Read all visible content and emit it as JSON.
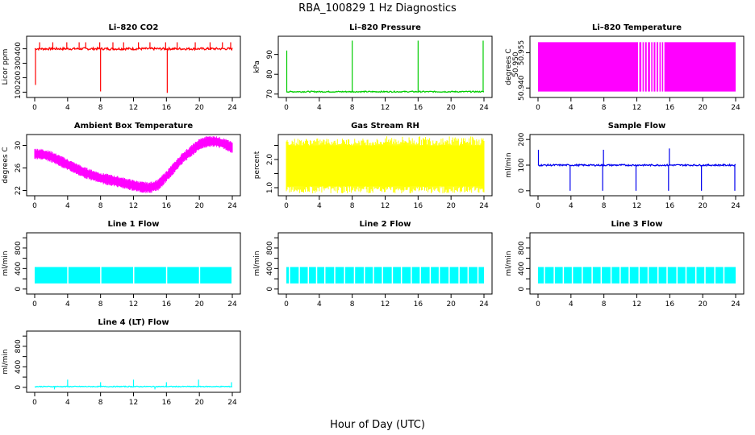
{
  "figure": {
    "title": "RBA_100829  1 Hz Diagnostics",
    "xlabel": "Hour of Day (UTC)"
  },
  "chart_data": [
    {
      "type": "line",
      "id": "co2",
      "title": "Li–820 CO2",
      "ylabel": "Licor ppm",
      "color": "#ff0000",
      "xlim": [
        0,
        24
      ],
      "ylim": [
        80,
        470
      ],
      "xticks": [
        0,
        4,
        8,
        12,
        16,
        20,
        24
      ],
      "yticks": [
        100,
        200,
        300,
        400
      ],
      "baseline": 400,
      "noise": 8,
      "spikes_up": [
        0.6,
        2.2,
        3.9,
        5.4,
        6.2,
        7.9,
        9.5,
        10.8,
        12.6,
        14.0,
        15.9,
        17.3,
        19.5,
        21.3,
        22.8,
        23.8
      ],
      "spike_up_value": 445,
      "spikes_down": [
        {
          "x": 8.0,
          "y": 105
        },
        {
          "x": 16.1,
          "y": 95
        },
        {
          "x": 0.1,
          "y": 150
        }
      ]
    },
    {
      "type": "line",
      "id": "pressure",
      "title": "Li–820 Pressure",
      "ylabel": "kPa",
      "color": "#00cc00",
      "xlim": [
        0,
        24
      ],
      "ylim": [
        69.5,
        98
      ],
      "xticks": [
        0,
        4,
        8,
        12,
        16,
        20,
        24
      ],
      "yticks": [
        70,
        80,
        90
      ],
      "baseline": 71.2,
      "noise": 0.3,
      "spikes": [
        {
          "x": 0.05,
          "y": 92
        },
        {
          "x": 8.0,
          "y": 97
        },
        {
          "x": 16.0,
          "y": 97
        },
        {
          "x": 23.9,
          "y": 97
        }
      ]
    },
    {
      "type": "band",
      "id": "licor-temp",
      "title": "Li–820 Temperature",
      "ylabel": "degrees C",
      "color": "#ff00ff",
      "xlim": [
        0,
        24
      ],
      "ylim": [
        50.937,
        50.961
      ],
      "xticks": [
        0,
        4,
        8,
        12,
        16,
        20,
        24
      ],
      "yticks": [
        50.94,
        50.955
      ],
      "ytick_labels": [
        "50.940",
        "50.955"
      ],
      "extra_ytick_labels": [
        "50.950"
      ],
      "band": [
        50.9385,
        50.9595
      ],
      "gaps": [
        12.15,
        12.55,
        12.85,
        13.2,
        13.6,
        13.9,
        14.25,
        14.6,
        14.9,
        15.2
      ]
    },
    {
      "type": "line",
      "id": "ambient-temp",
      "title": "Ambient Box Temperature",
      "ylabel": "degrees C",
      "color": "#ff00ff",
      "xlim": [
        0,
        24
      ],
      "ylim": [
        21.5,
        31.5
      ],
      "xticks": [
        0,
        4,
        8,
        12,
        16,
        20,
        24
      ],
      "yticks": [
        22,
        26,
        30
      ],
      "curve_x": [
        0,
        1,
        2,
        4,
        6,
        8,
        10,
        12,
        13,
        14,
        15,
        16,
        18,
        20,
        21,
        22,
        23,
        24
      ],
      "curve_y": [
        28.5,
        28.4,
        28.0,
        26.6,
        25.2,
        24.2,
        23.6,
        22.9,
        22.6,
        22.5,
        23.0,
        24.5,
        27.8,
        30.2,
        30.7,
        30.7,
        30.3,
        29.6
      ],
      "band_width": 1.2
    },
    {
      "type": "band",
      "id": "gas-rh",
      "title": "Gas Stream RH",
      "ylabel": "percent",
      "color": "#ffff00",
      "xlim": [
        0,
        24
      ],
      "ylim": [
        0.8,
        2.8
      ],
      "xticks": [
        0,
        4,
        8,
        12,
        16,
        20,
        24
      ],
      "yticks": [
        1.0,
        1.5,
        2.0,
        2.5
      ],
      "ytick_labels": [
        "1.0",
        "",
        "2.0",
        ""
      ],
      "band": [
        1.05,
        2.5
      ]
    },
    {
      "type": "line",
      "id": "sample-flow",
      "title": "Sample Flow",
      "ylabel": "ml/min",
      "color": "#0000ee",
      "xlim": [
        0,
        24
      ],
      "ylim": [
        -10,
        210
      ],
      "xticks": [
        0,
        4,
        8,
        12,
        16,
        20,
        24
      ],
      "yticks": [
        0,
        100,
        200
      ],
      "baseline": 100,
      "noise": 3,
      "spikes": [
        {
          "x": 0.05,
          "y": 160
        },
        {
          "x": 3.9,
          "y": 0
        },
        {
          "x": 7.85,
          "y": 0
        },
        {
          "x": 7.95,
          "y": 160
        },
        {
          "x": 11.9,
          "y": 0
        },
        {
          "x": 15.85,
          "y": 0
        },
        {
          "x": 15.95,
          "y": 165
        },
        {
          "x": 19.85,
          "y": 0
        },
        {
          "x": 23.9,
          "y": 0
        }
      ]
    },
    {
      "type": "band",
      "id": "line1-flow",
      "title": "Line 1 Flow",
      "ylabel": "ml/min",
      "color": "#00ffff",
      "xlim": [
        0,
        24
      ],
      "ylim": [
        -50,
        1050
      ],
      "xticks": [
        0,
        4,
        8,
        12,
        16,
        20,
        24
      ],
      "yticks": [
        0,
        200,
        400,
        600,
        800,
        1000
      ],
      "ytick_labels": [
        "0",
        "",
        "400",
        "",
        "800",
        ""
      ],
      "band": [
        110,
        430
      ],
      "gaps": [
        3.95,
        7.95,
        11.95,
        15.95,
        19.95,
        23.9
      ]
    },
    {
      "type": "band",
      "id": "line2-flow",
      "title": "Line 2 Flow",
      "ylabel": "ml/min",
      "color": "#00ffff",
      "xlim": [
        0,
        24
      ],
      "ylim": [
        -50,
        1050
      ],
      "xticks": [
        0,
        4,
        8,
        12,
        16,
        20,
        24
      ],
      "yticks": [
        0,
        200,
        400,
        600,
        800,
        1000
      ],
      "ytick_labels": [
        "0",
        "",
        "400",
        "",
        "800",
        ""
      ],
      "band": [
        110,
        430
      ],
      "gaps": [
        0.3,
        1.5,
        2.6,
        3.6,
        4.6,
        5.8,
        7.0,
        8.2,
        9.4,
        10.5,
        11.6,
        12.8,
        13.9,
        15.1,
        16.2,
        17.4,
        18.5,
        19.7,
        20.9,
        22.0,
        23.2
      ]
    },
    {
      "type": "band",
      "id": "line3-flow",
      "title": "Line 3 Flow",
      "ylabel": "ml/min",
      "color": "#00ffff",
      "xlim": [
        0,
        24
      ],
      "ylim": [
        -50,
        1050
      ],
      "xticks": [
        0,
        4,
        8,
        12,
        16,
        20,
        24
      ],
      "yticks": [
        0,
        200,
        400,
        600,
        800,
        1000
      ],
      "ytick_labels": [
        "0",
        "",
        "400",
        "",
        "800",
        ""
      ],
      "band": [
        110,
        430
      ],
      "gaps": [
        0.7,
        1.9,
        3.0,
        4.1,
        5.3,
        6.5,
        7.6,
        8.8,
        9.9,
        11.0,
        12.2,
        13.3,
        14.5,
        15.6,
        16.8,
        17.9,
        19.1,
        20.2,
        21.4,
        22.5
      ]
    },
    {
      "type": "line",
      "id": "line4-flow",
      "title": "Line 4 (LT) Flow",
      "ylabel": "ml/min",
      "color": "#00ffff",
      "xlim": [
        0,
        24
      ],
      "ylim": [
        -50,
        1050
      ],
      "xticks": [
        0,
        4,
        8,
        12,
        16,
        20,
        24
      ],
      "yticks": [
        0,
        200,
        400,
        600,
        800,
        1000
      ],
      "ytick_labels": [
        "0",
        "",
        "400",
        "",
        "800",
        ""
      ],
      "baseline": 15,
      "noise": 8,
      "spikes": [
        {
          "x": 4.0,
          "y": 150
        },
        {
          "x": 8.0,
          "y": 100
        },
        {
          "x": 12.0,
          "y": 150
        },
        {
          "x": 16.0,
          "y": 100
        },
        {
          "x": 19.9,
          "y": 150
        },
        {
          "x": 23.9,
          "y": 100
        },
        {
          "x": 2.4,
          "y": -40
        },
        {
          "x": 14.6,
          "y": -40
        }
      ]
    }
  ]
}
